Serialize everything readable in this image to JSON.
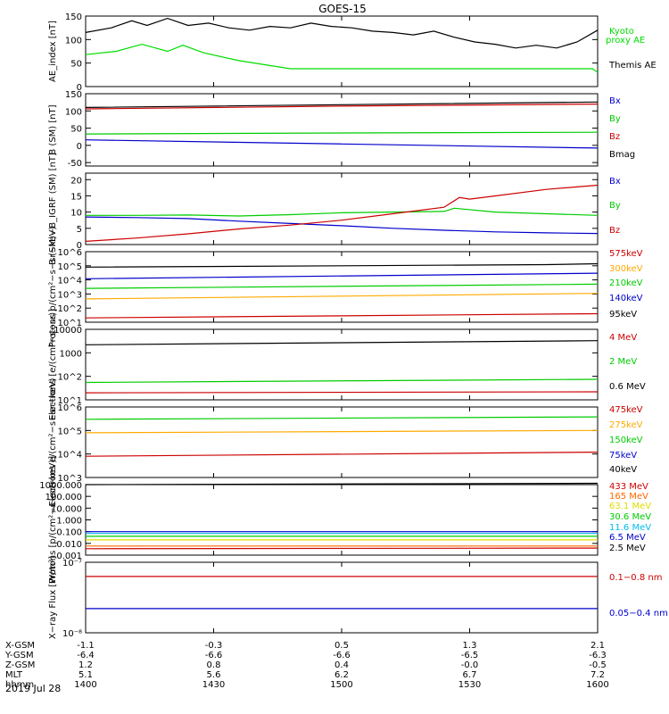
{
  "figure": {
    "title": "GOES-15",
    "date_label": "2019 Jul 28"
  },
  "chart_data": [
    {
      "type": "line",
      "ylabel": "AE_index [nT]",
      "ylim": [
        0,
        150
      ],
      "yticks": [
        0,
        50,
        100,
        150
      ],
      "series": [
        {
          "name": "Kyoto proxy AE",
          "color": "#00dd00",
          "x": [
            0,
            0.06,
            0.11,
            0.16,
            0.19,
            0.23,
            0.3,
            0.4,
            0.5,
            0.6,
            0.7,
            0.8,
            0.9,
            0.99,
            1.0
          ],
          "y": [
            68,
            75,
            90,
            75,
            88,
            72,
            55,
            38,
            38,
            38,
            38,
            38,
            38,
            38,
            30
          ]
        },
        {
          "name": "Themis AE",
          "color": "#000000",
          "x": [
            0,
            0.05,
            0.09,
            0.12,
            0.16,
            0.2,
            0.24,
            0.28,
            0.32,
            0.36,
            0.4,
            0.44,
            0.48,
            0.52,
            0.56,
            0.6,
            0.64,
            0.68,
            0.72,
            0.76,
            0.8,
            0.84,
            0.88,
            0.92,
            0.96,
            1.0
          ],
          "y": [
            115,
            125,
            140,
            130,
            145,
            130,
            135,
            125,
            120,
            128,
            125,
            135,
            128,
            125,
            118,
            115,
            110,
            118,
            105,
            95,
            90,
            82,
            88,
            82,
            95,
            120
          ]
        }
      ]
    },
    {
      "type": "line",
      "ylabel": "B (SM) [nT]",
      "ylim": [
        -60,
        150
      ],
      "yticks": [
        -50,
        0,
        50,
        100,
        150
      ],
      "series": [
        {
          "name": "Bx",
          "color": "#0000cc",
          "x": [
            0,
            0.5,
            1.0
          ],
          "y": [
            16,
            4,
            -8
          ]
        },
        {
          "name": "By",
          "color": "#00cc00",
          "x": [
            0,
            0.5,
            1.0
          ],
          "y": [
            33,
            36,
            38
          ]
        },
        {
          "name": "Bz",
          "color": "#cc0000",
          "x": [
            0,
            0.5,
            1.0
          ],
          "y": [
            106,
            114,
            120
          ]
        },
        {
          "name": "Bmag",
          "color": "#000000",
          "x": [
            0,
            0.5,
            1.0
          ],
          "y": [
            110,
            118,
            126
          ]
        }
      ]
    },
    {
      "type": "line",
      "ylabel": "B (SM)−B_IGRF (SM) [nT]",
      "ylim": [
        0,
        22
      ],
      "yticks": [
        0,
        5,
        10,
        15,
        20
      ],
      "series": [
        {
          "name": "Bx",
          "color": "#0000cc",
          "x": [
            0,
            0.1,
            0.2,
            0.3,
            0.4,
            0.5,
            0.6,
            0.7,
            0.8,
            0.9,
            1.0
          ],
          "y": [
            8.5,
            8.3,
            8,
            7.2,
            6.5,
            5.8,
            5,
            4.4,
            3.9,
            3.6,
            3.4
          ]
        },
        {
          "name": "By",
          "color": "#00cc00",
          "x": [
            0,
            0.1,
            0.2,
            0.3,
            0.4,
            0.5,
            0.6,
            0.7,
            0.72,
            0.8,
            0.9,
            1.0
          ],
          "y": [
            9,
            9,
            9.1,
            8.8,
            9.2,
            9.8,
            10,
            10.2,
            11.2,
            10,
            9.5,
            9
          ]
        },
        {
          "name": "Bz",
          "color": "#cc0000",
          "x": [
            0,
            0.1,
            0.2,
            0.3,
            0.4,
            0.5,
            0.6,
            0.7,
            0.73,
            0.75,
            0.8,
            0.9,
            1.0
          ],
          "y": [
            1,
            2,
            3.3,
            4.8,
            6,
            7.5,
            9.5,
            11.5,
            14.5,
            14,
            15,
            17,
            18.3
          ]
        }
      ]
    },
    {
      "type": "line",
      "scale": "log",
      "ylabel": "Protons p/(cm²−s−sr−keV)",
      "ylim": [
        10,
        1000000
      ],
      "yticks": [
        10,
        100,
        1000,
        10000,
        100000,
        1000000
      ],
      "series": [
        {
          "name": "575keV",
          "color": "#cc0000",
          "x": [
            0,
            1.0
          ],
          "y": [
            20,
            40
          ]
        },
        {
          "name": "300keV",
          "color": "#ffaa00",
          "x": [
            0,
            1.0
          ],
          "y": [
            450,
            1100
          ]
        },
        {
          "name": "210keV",
          "color": "#00cc00",
          "x": [
            0,
            1.0
          ],
          "y": [
            2500,
            5000
          ]
        },
        {
          "name": "140keV",
          "color": "#0000cc",
          "x": [
            0,
            1.0
          ],
          "y": [
            12000,
            30000
          ]
        },
        {
          "name": "95keV",
          "color": "#000000",
          "x": [
            0,
            0.5,
            0.9,
            1.0
          ],
          "y": [
            80000,
            100000,
            120000,
            140000
          ]
        }
      ]
    },
    {
      "type": "line",
      "scale": "log",
      "ylabel": "Electrons [e/(cm²−s−sr)]",
      "ylim": [
        10,
        10000
      ],
      "yticks": [
        10,
        100,
        1000,
        10000
      ],
      "series": [
        {
          "name": "4 MeV",
          "color": "#cc0000",
          "x": [
            0,
            1.0
          ],
          "y": [
            20,
            22
          ]
        },
        {
          "name": "2 MeV",
          "color": "#00cc00",
          "x": [
            0,
            1.0
          ],
          "y": [
            55,
            75
          ]
        },
        {
          "name": "0.6 MeV",
          "color": "#000000",
          "x": [
            0,
            1.0
          ],
          "y": [
            2200,
            3300
          ]
        }
      ]
    },
    {
      "type": "line",
      "scale": "log",
      "ylabel": "Electrons e/(cm²−s−sr−keV)",
      "ylim": [
        1000,
        1000000
      ],
      "yticks": [
        1000,
        10000,
        100000,
        1000000
      ],
      "series": [
        {
          "name": "475keV",
          "color": "#cc0000",
          "x": [
            0,
            1.0
          ],
          "y": [
            8000,
            12000
          ]
        },
        {
          "name": "275keV",
          "color": "#ffaa00",
          "x": [
            0,
            1.0
          ],
          "y": [
            80000,
            100000
          ]
        },
        {
          "name": "150keV",
          "color": "#00cc00",
          "x": [
            0,
            1.0
          ],
          "y": [
            300000,
            380000
          ]
        },
        {
          "name": "75keV",
          "color": "#0000cc",
          "x": [
            0,
            1.0
          ],
          "y": [
            0,
            0
          ]
        },
        {
          "name": "40keV",
          "color": "#000000",
          "x": [
            0,
            1.0
          ],
          "y": [
            0,
            0
          ]
        }
      ]
    },
    {
      "type": "line",
      "scale": "log",
      "ylabel": "Protons [p/(cm²−s−sr−keV)]",
      "ylim": [
        0.001,
        1000
      ],
      "yticks": [
        0.001,
        0.01,
        0.1,
        1,
        10,
        100,
        1000
      ],
      "ytick_labels": [
        "0.001",
        "0.010",
        "0.100",
        "1.000",
        "10.000",
        "100.000",
        "1000.000"
      ],
      "series": [
        {
          "name": "433 MeV",
          "color": "#cc0000",
          "x": [
            0,
            1.0
          ],
          "y": [
            0.0035,
            0.004
          ]
        },
        {
          "name": "165 MeV",
          "color": "#ff6600",
          "x": [
            0,
            1.0
          ],
          "y": [
            0.006,
            0.006
          ]
        },
        {
          "name": "63.1 MeV",
          "color": "#dddd00",
          "x": [
            0,
            1.0
          ],
          "y": [
            0.02,
            0.02
          ]
        },
        {
          "name": "30.6 MeV",
          "color": "#00cc00",
          "x": [
            0,
            1.0
          ],
          "y": [
            0.04,
            0.04
          ]
        },
        {
          "name": "11.6 MeV",
          "color": "#00bbee",
          "x": [
            0,
            1.0
          ],
          "y": [
            0.07,
            0.07
          ]
        },
        {
          "name": "6.5 MeV",
          "color": "#0000cc",
          "x": [
            0,
            1.0
          ],
          "y": [
            0.1,
            0.1
          ]
        },
        {
          "name": "2.5 MeV",
          "color": "#000000",
          "x": [
            0,
            1.0
          ],
          "y": [
            1000,
            1300
          ]
        }
      ]
    },
    {
      "type": "line",
      "scale": "log",
      "ylabel": "X−ray Flux [W/m²]",
      "ylim": [
        1e-08,
        1e-07
      ],
      "yticks": [
        1e-08,
        1e-07
      ],
      "ytick_labels": [
        "10⁻⁸",
        "10⁻⁷"
      ],
      "series": [
        {
          "name": "0.1−0.8 nm",
          "color": "#cc0000",
          "x": [
            0,
            1.0
          ],
          "y": [
            6.3e-08,
            6.3e-08
          ]
        },
        {
          "name": "0.05−0.4 nm",
          "color": "#0000cc",
          "x": [
            0,
            1.0
          ],
          "y": [
            2.2e-08,
            2.2e-08
          ]
        }
      ]
    }
  ],
  "ephemeris": {
    "row_labels": [
      "X-GSM",
      "Y-GSM",
      "Z-GSM",
      "MLT",
      "hhmm"
    ],
    "columns": [
      [
        "-1.1",
        "-6.4",
        "1.2",
        "5.1",
        "1400"
      ],
      [
        "-0.3",
        "-6.6",
        "0.8",
        "5.6",
        "1430"
      ],
      [
        "0.5",
        "-6.6",
        "0.4",
        "6.2",
        "1500"
      ],
      [
        "1.3",
        "-6.5",
        "-0.0",
        "6.7",
        "1530"
      ],
      [
        "2.1",
        "-6.3",
        "-0.5",
        "7.2",
        "1600"
      ]
    ]
  }
}
